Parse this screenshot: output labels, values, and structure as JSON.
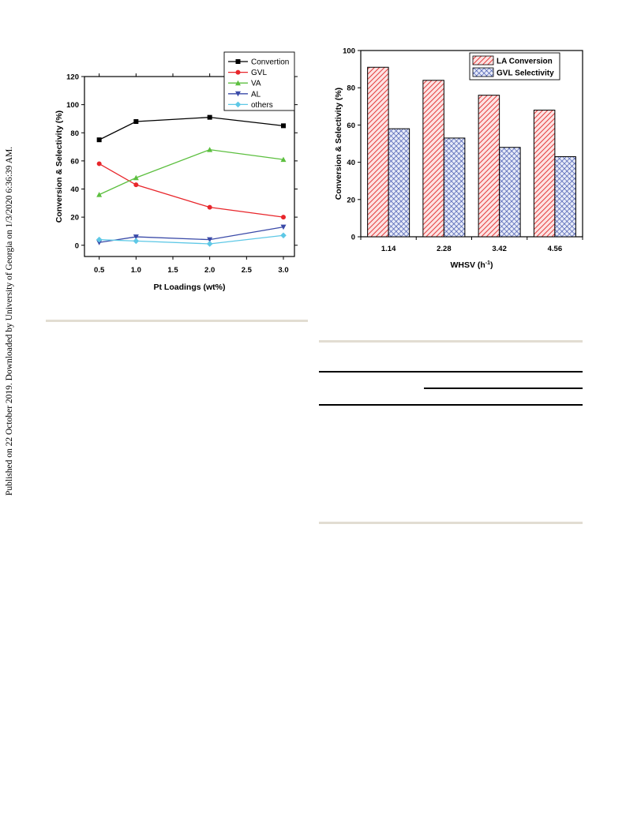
{
  "side_note": "Published on 22 October 2019. Downloaded by University of Georgia on 1/3/2020 6:36:39 AM.",
  "colors": {
    "convertion": "#000000",
    "gvl": "#e8262b",
    "va": "#5cbf3f",
    "al": "#3a4aa8",
    "others": "#5ec8e6",
    "la_conversion_hatch": "#e33b3b",
    "la_conversion_fill": "#fde3e3",
    "gvl_selectivity_hatch": "#2e44a6",
    "gvl_selectivity_fill": "#e7ebf8"
  },
  "chart_data": [
    {
      "type": "line",
      "xlabel": "Pt Loadings (wt%)",
      "ylabel": "Conversion & Selectivity (%)",
      "xlim": [
        0.3,
        3.15
      ],
      "ylim": [
        -8,
        120
      ],
      "x_ticks": [
        "0.5",
        "1.0",
        "1.5",
        "2.0",
        "2.5",
        "3.0"
      ],
      "y_ticks": [
        "0",
        "20",
        "40",
        "60",
        "80",
        "100",
        "120"
      ],
      "legend_position": "top-right",
      "x": [
        0.5,
        1.0,
        2.0,
        3.0
      ],
      "series": [
        {
          "name": "Convertion",
          "values": [
            75,
            88,
            91,
            85
          ],
          "marker": "square"
        },
        {
          "name": "GVL",
          "values": [
            58,
            43,
            27,
            20
          ],
          "marker": "circle"
        },
        {
          "name": "VA",
          "values": [
            36,
            48,
            68,
            61
          ],
          "marker": "triangle-up"
        },
        {
          "name": "AL",
          "values": [
            2,
            6,
            4,
            13
          ],
          "marker": "triangle-down"
        },
        {
          "name": "others",
          "values": [
            4,
            3,
            1,
            7
          ],
          "marker": "diamond"
        }
      ]
    },
    {
      "type": "bar",
      "xlabel": "WHSV (h",
      "xlabel_sup": "-1",
      "xlabel_end": ")",
      "ylabel": "Conversion & Selectivity (%)",
      "ylim": [
        0,
        100
      ],
      "y_ticks": [
        "0",
        "20",
        "40",
        "60",
        "80",
        "100"
      ],
      "legend_position": "top-right",
      "categories": [
        "1.14",
        "2.28",
        "3.42",
        "4.56"
      ],
      "series": [
        {
          "name": "LA Conversion",
          "values": [
            91,
            84,
            76,
            68
          ],
          "pattern": "diagonal-hatch"
        },
        {
          "name": "GVL Selectivity",
          "values": [
            58,
            53,
            48,
            43
          ],
          "pattern": "cross-hatch"
        }
      ]
    }
  ]
}
